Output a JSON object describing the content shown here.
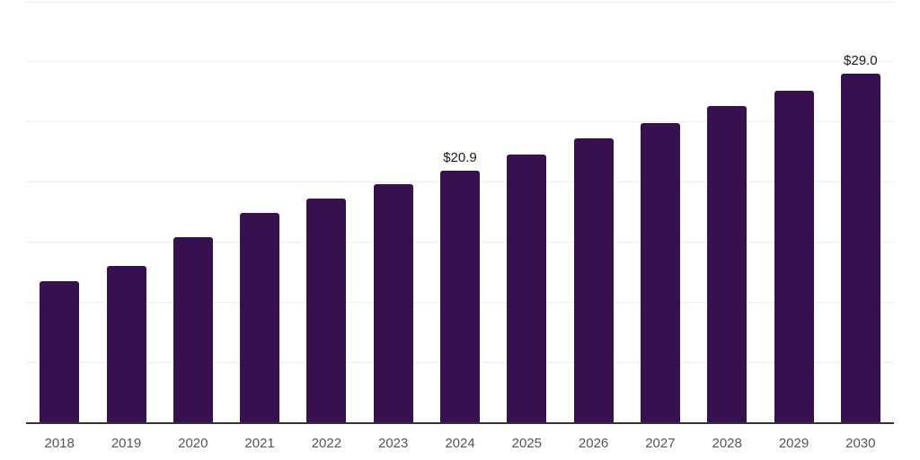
{
  "chart_data": {
    "type": "bar",
    "title": "",
    "xlabel": "",
    "ylabel": "",
    "categories": [
      "2018",
      "2019",
      "2020",
      "2021",
      "2022",
      "2023",
      "2024",
      "2025",
      "2026",
      "2027",
      "2028",
      "2029",
      "2030"
    ],
    "values": [
      11.7,
      13.0,
      15.4,
      17.4,
      18.6,
      19.8,
      20.9,
      22.3,
      23.6,
      24.9,
      26.3,
      27.6,
      29.0
    ],
    "data_labels": [
      {
        "category": "2024",
        "text": "$20.9"
      },
      {
        "category": "2030",
        "text": "$29.0"
      }
    ],
    "ylim": [
      0,
      35
    ],
    "gridline_interval": 5,
    "grid": true,
    "legend_position": "none",
    "colors": {
      "bar": "#37114f",
      "gridline": "#f0f0f0",
      "axis_line": "#333333",
      "tick_label": "#555555",
      "value_label": "#1a1a1a",
      "background": "#ffffff"
    }
  }
}
